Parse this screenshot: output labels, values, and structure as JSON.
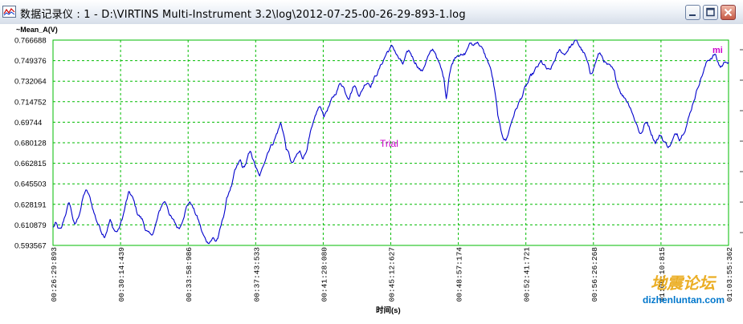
{
  "window": {
    "title": "数据记录仪 : 1 - D:\\VIRTINS Multi-Instrument 3.2\\log\\2012-07-25-00-26-29-893-1.log",
    "buttons": {
      "minimize": "minimize-icon",
      "maximize": "maximize-icon",
      "close": "close-icon"
    }
  },
  "watermark": {
    "text": "地震论坛",
    "url": "dizhenluntan.com"
  },
  "chart_data": {
    "type": "line",
    "series": [
      {
        "name": "~Mean_A(V)",
        "color": "#0000cc",
        "y": [
          0.6085,
          0.612,
          0.607,
          0.606,
          0.615,
          0.623,
          0.63,
          0.62,
          0.61,
          0.615,
          0.623,
          0.633,
          0.64,
          0.637,
          0.63,
          0.622,
          0.615,
          0.61,
          0.605,
          0.602,
          0.608,
          0.615,
          0.609,
          0.605,
          0.606,
          0.612,
          0.62,
          0.63,
          0.638,
          0.635,
          0.629,
          0.621,
          0.618,
          0.615,
          0.608,
          0.604,
          0.601,
          0.605,
          0.612,
          0.62,
          0.627,
          0.631,
          0.628,
          0.62,
          0.615,
          0.612,
          0.608,
          0.61,
          0.618,
          0.625,
          0.63,
          0.629,
          0.623,
          0.618,
          0.612,
          0.604,
          0.599,
          0.596,
          0.598,
          0.6,
          0.597,
          0.601,
          0.61,
          0.62,
          0.632,
          0.64,
          0.645,
          0.655,
          0.66,
          0.665,
          0.658,
          0.662,
          0.669,
          0.672,
          0.664,
          0.658,
          0.651,
          0.656,
          0.665,
          0.672,
          0.677,
          0.68,
          0.685,
          0.691,
          0.697,
          0.688,
          0.675,
          0.67,
          0.662,
          0.665,
          0.67,
          0.672,
          0.668,
          0.671,
          0.68,
          0.689,
          0.695,
          0.704,
          0.71,
          0.708,
          0.703,
          0.708,
          0.712,
          0.717,
          0.721,
          0.726,
          0.731,
          0.728,
          0.722,
          0.719,
          0.724,
          0.729,
          0.725,
          0.72,
          0.725,
          0.73,
          0.732,
          0.729,
          0.733,
          0.737,
          0.741,
          0.746,
          0.751,
          0.756,
          0.759,
          0.761,
          0.758,
          0.753,
          0.749,
          0.746,
          0.752,
          0.757,
          0.755,
          0.75,
          0.747,
          0.743,
          0.74,
          0.746,
          0.752,
          0.755,
          0.758,
          0.756,
          0.749,
          0.742,
          0.735,
          0.718,
          0.738,
          0.746,
          0.752,
          0.755,
          0.756,
          0.753,
          0.755,
          0.761,
          0.764,
          0.762,
          0.766,
          0.764,
          0.76,
          0.755,
          0.75,
          0.745,
          0.735,
          0.72,
          0.702,
          0.69,
          0.685,
          0.682,
          0.69,
          0.698,
          0.705,
          0.71,
          0.715,
          0.72,
          0.726,
          0.73,
          0.735,
          0.738,
          0.742,
          0.745,
          0.748,
          0.745,
          0.742,
          0.74,
          0.744,
          0.75,
          0.755,
          0.758,
          0.755,
          0.756,
          0.76,
          0.762,
          0.764,
          0.766,
          0.762,
          0.758,
          0.754,
          0.747,
          0.738,
          0.742,
          0.748,
          0.755,
          0.754,
          0.75,
          0.746,
          0.744,
          0.742,
          0.738,
          0.73,
          0.725,
          0.72,
          0.718,
          0.714,
          0.71,
          0.702,
          0.697,
          0.69,
          0.688,
          0.695,
          0.698,
          0.692,
          0.686,
          0.681,
          0.684,
          0.687,
          0.682,
          0.679,
          0.677,
          0.68,
          0.685,
          0.688,
          0.684,
          0.688,
          0.693,
          0.699,
          0.706,
          0.715,
          0.722,
          0.73,
          0.736,
          0.742,
          0.748,
          0.751,
          0.753,
          0.755,
          0.748,
          0.744,
          0.746,
          0.75,
          0.748
        ]
      }
    ],
    "x_ticks": [
      "00:26:29:893",
      "00:30:14:439",
      "00:33:58:986",
      "00:37:43:533",
      "00:41:28:080",
      "00:45:12:627",
      "00:48:57:174",
      "00:52:41:721",
      "00:56:26:268",
      "01:00:10:815",
      "01:03:55:362"
    ],
    "y_ticks": [
      "0.766688",
      "0.749376",
      "0.732064",
      "0.714752",
      "0.69744",
      "0.680128",
      "0.662815",
      "0.645503",
      "0.628191",
      "0.610879",
      "0.593567"
    ],
    "ylim": [
      0.593567,
      0.766688
    ],
    "xlabel": "时间(s)",
    "ylabel": "~Mean_A(V)",
    "annotations": [
      "Trial",
      "mi"
    ],
    "grid": true,
    "colors": {
      "line": "#0000cc",
      "grid": "#00bb00",
      "frame": "#00bb00",
      "annotation": "#cc00cc"
    }
  }
}
